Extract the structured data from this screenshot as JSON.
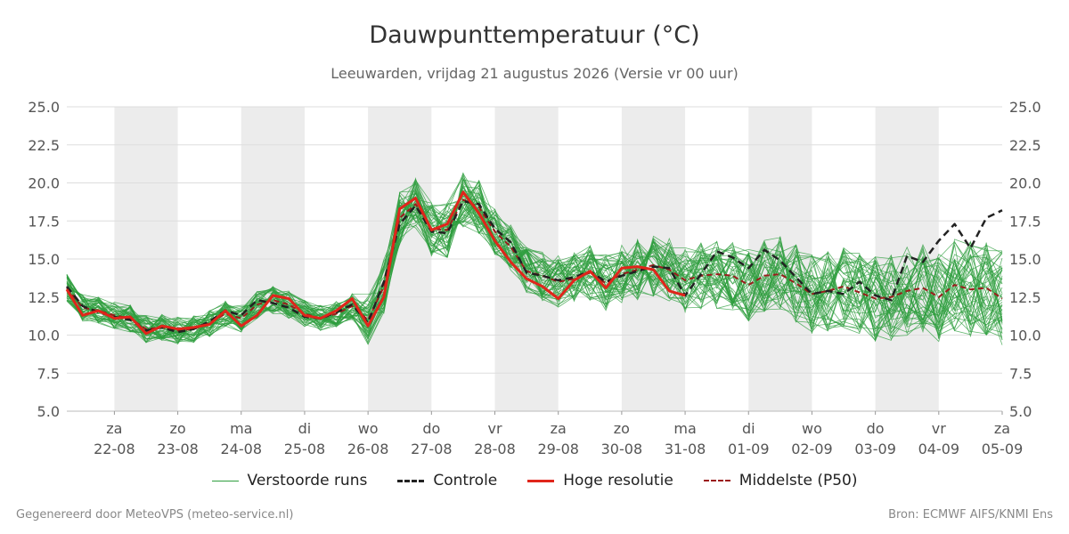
{
  "chart_data": {
    "type": "line",
    "title": "Dauwpunttemperatuur (°C)",
    "subtitle": "Leeuwarden, vrijdag 21 augustus 2026 (Versie vr 00 uur)",
    "x_ticks": [
      {
        "day": "za",
        "date": "22-08"
      },
      {
        "day": "zo",
        "date": "23-08"
      },
      {
        "day": "ma",
        "date": "24-08"
      },
      {
        "day": "di",
        "date": "25-08"
      },
      {
        "day": "wo",
        "date": "26-08"
      },
      {
        "day": "do",
        "date": "27-08"
      },
      {
        "day": "vr",
        "date": "28-08"
      },
      {
        "day": "za",
        "date": "29-08"
      },
      {
        "day": "zo",
        "date": "30-08"
      },
      {
        "day": "ma",
        "date": "31-08"
      },
      {
        "day": "di",
        "date": "01-09"
      },
      {
        "day": "wo",
        "date": "02-09"
      },
      {
        "day": "do",
        "date": "03-09"
      },
      {
        "day": "vr",
        "date": "04-09"
      },
      {
        "day": "za",
        "date": "05-09"
      }
    ],
    "x_range_days": [
      -0.75,
      14.0
    ],
    "ylim": [
      5.0,
      25.0
    ],
    "y_ticks": [
      "5.0",
      "7.5",
      "10.0",
      "12.5",
      "15.0",
      "17.5",
      "20.0",
      "22.5",
      "25.0"
    ],
    "grid": true,
    "shaded_days": [
      "22-08",
      "24-08",
      "26-08",
      "28-08",
      "30-08",
      "01-09",
      "03-09"
    ],
    "series": [
      {
        "name": "Controle",
        "color": "#222222",
        "style": "dashed",
        "x": [
          -0.75,
          -0.5,
          -0.25,
          0,
          0.25,
          0.5,
          0.75,
          1,
          1.25,
          1.5,
          1.75,
          2,
          2.25,
          2.5,
          2.75,
          3,
          3.25,
          3.5,
          3.75,
          4,
          4.25,
          4.5,
          4.75,
          5,
          5.25,
          5.5,
          5.75,
          6,
          6.25,
          6.5,
          6.75,
          7,
          7.25,
          7.5,
          7.75,
          8,
          8.25,
          8.5,
          8.75,
          9,
          9.25,
          9.5,
          9.75,
          10,
          10.25,
          10.5,
          10.75,
          11,
          11.25,
          11.5,
          11.75,
          12,
          12.25,
          12.5,
          12.75,
          13,
          13.25,
          13.5,
          13.75,
          14
        ],
        "values": [
          13.2,
          11.9,
          11.5,
          11.2,
          11.0,
          10.3,
          10.5,
          10.2,
          10.4,
          10.9,
          11.6,
          11.3,
          12.3,
          12.1,
          11.8,
          11.2,
          11.1,
          11.5,
          12.0,
          10.8,
          13.5,
          17.3,
          18.5,
          16.8,
          16.7,
          18.8,
          18.6,
          17.0,
          16.1,
          14.1,
          13.9,
          13.6,
          13.8,
          14.2,
          13.5,
          13.9,
          14.2,
          14.5,
          14.4,
          12.6,
          14.0,
          15.5,
          15.1,
          14.4,
          15.6,
          14.9,
          13.8,
          12.7,
          12.9,
          12.7,
          13.5,
          12.6,
          12.3,
          15.2,
          14.8,
          16.2,
          17.3,
          15.7,
          17.7,
          18.2
        ]
      },
      {
        "name": "Hoge resolutie",
        "color": "#e0251b",
        "style": "solid",
        "x": [
          -0.75,
          -0.5,
          -0.25,
          0,
          0.25,
          0.5,
          0.75,
          1,
          1.25,
          1.5,
          1.75,
          2,
          2.25,
          2.5,
          2.75,
          3,
          3.25,
          3.5,
          3.75,
          4,
          4.25,
          4.5,
          4.75,
          5,
          5.25,
          5.5,
          5.75,
          6,
          6.25,
          6.5,
          6.75,
          7,
          7.25,
          7.5,
          7.75,
          8,
          8.25,
          8.5,
          8.75,
          9
        ],
        "values": [
          13.0,
          11.3,
          11.6,
          11.1,
          11.2,
          10.1,
          10.6,
          10.4,
          10.5,
          10.7,
          11.6,
          10.6,
          11.3,
          12.6,
          12.4,
          11.3,
          11.1,
          11.6,
          12.4,
          10.6,
          12.5,
          18.3,
          19.0,
          16.9,
          17.3,
          19.4,
          18.0,
          16.2,
          14.8,
          13.7,
          13.2,
          12.4,
          13.6,
          14.2,
          13.1,
          14.4,
          14.5,
          14.3,
          12.9,
          12.6
        ]
      },
      {
        "name": "Middelste (P50)",
        "color": "#9b1c1c",
        "style": "dashed",
        "x": [
          -0.75,
          -0.5,
          -0.25,
          0,
          0.25,
          0.5,
          0.75,
          1,
          1.25,
          1.5,
          1.75,
          2,
          2.25,
          2.5,
          2.75,
          3,
          3.25,
          3.5,
          3.75,
          4,
          4.25,
          4.5,
          4.75,
          5,
          5.25,
          5.5,
          5.75,
          6,
          6.25,
          6.5,
          6.75,
          7,
          7.25,
          7.5,
          7.75,
          8,
          8.25,
          8.5,
          8.75,
          9,
          9.25,
          9.5,
          9.75,
          10,
          10.25,
          10.5,
          10.75,
          11,
          11.25,
          11.5,
          11.75,
          12,
          12.25,
          12.5,
          12.75,
          13,
          13.25,
          13.5,
          13.75,
          14
        ],
        "values": [
          13.1,
          11.8,
          11.6,
          11.3,
          11.1,
          10.4,
          10.5,
          10.3,
          10.4,
          10.8,
          11.4,
          11.1,
          12.0,
          12.3,
          12.0,
          11.4,
          11.1,
          11.4,
          11.9,
          11.0,
          13.2,
          17.7,
          18.6,
          17.0,
          16.9,
          18.9,
          18.4,
          16.8,
          15.8,
          14.2,
          13.9,
          13.5,
          13.7,
          14.1,
          13.4,
          14.0,
          14.3,
          14.6,
          14.3,
          13.6,
          13.9,
          14.0,
          13.9,
          13.3,
          13.9,
          14.0,
          13.4,
          12.7,
          12.9,
          13.2,
          12.8,
          12.4,
          12.5,
          12.9,
          13.1,
          12.5,
          13.3,
          13.0,
          13.1,
          12.4
        ]
      }
    ],
    "ensemble": {
      "name": "Verstoorde runs",
      "color": "#2e9e3e",
      "members": 50
    },
    "legend": {
      "placement": "bottom"
    }
  },
  "legend_items": {
    "ensemble": "Verstoorde runs",
    "control": "Controle",
    "hires": "Hoge resolutie",
    "median": "Middelste (P50)"
  },
  "footer": {
    "left": "Gegenereerd door MeteoVPS (meteo-service.nl)",
    "right": "Bron: ECMWF AIFS/KNMI Ens"
  }
}
